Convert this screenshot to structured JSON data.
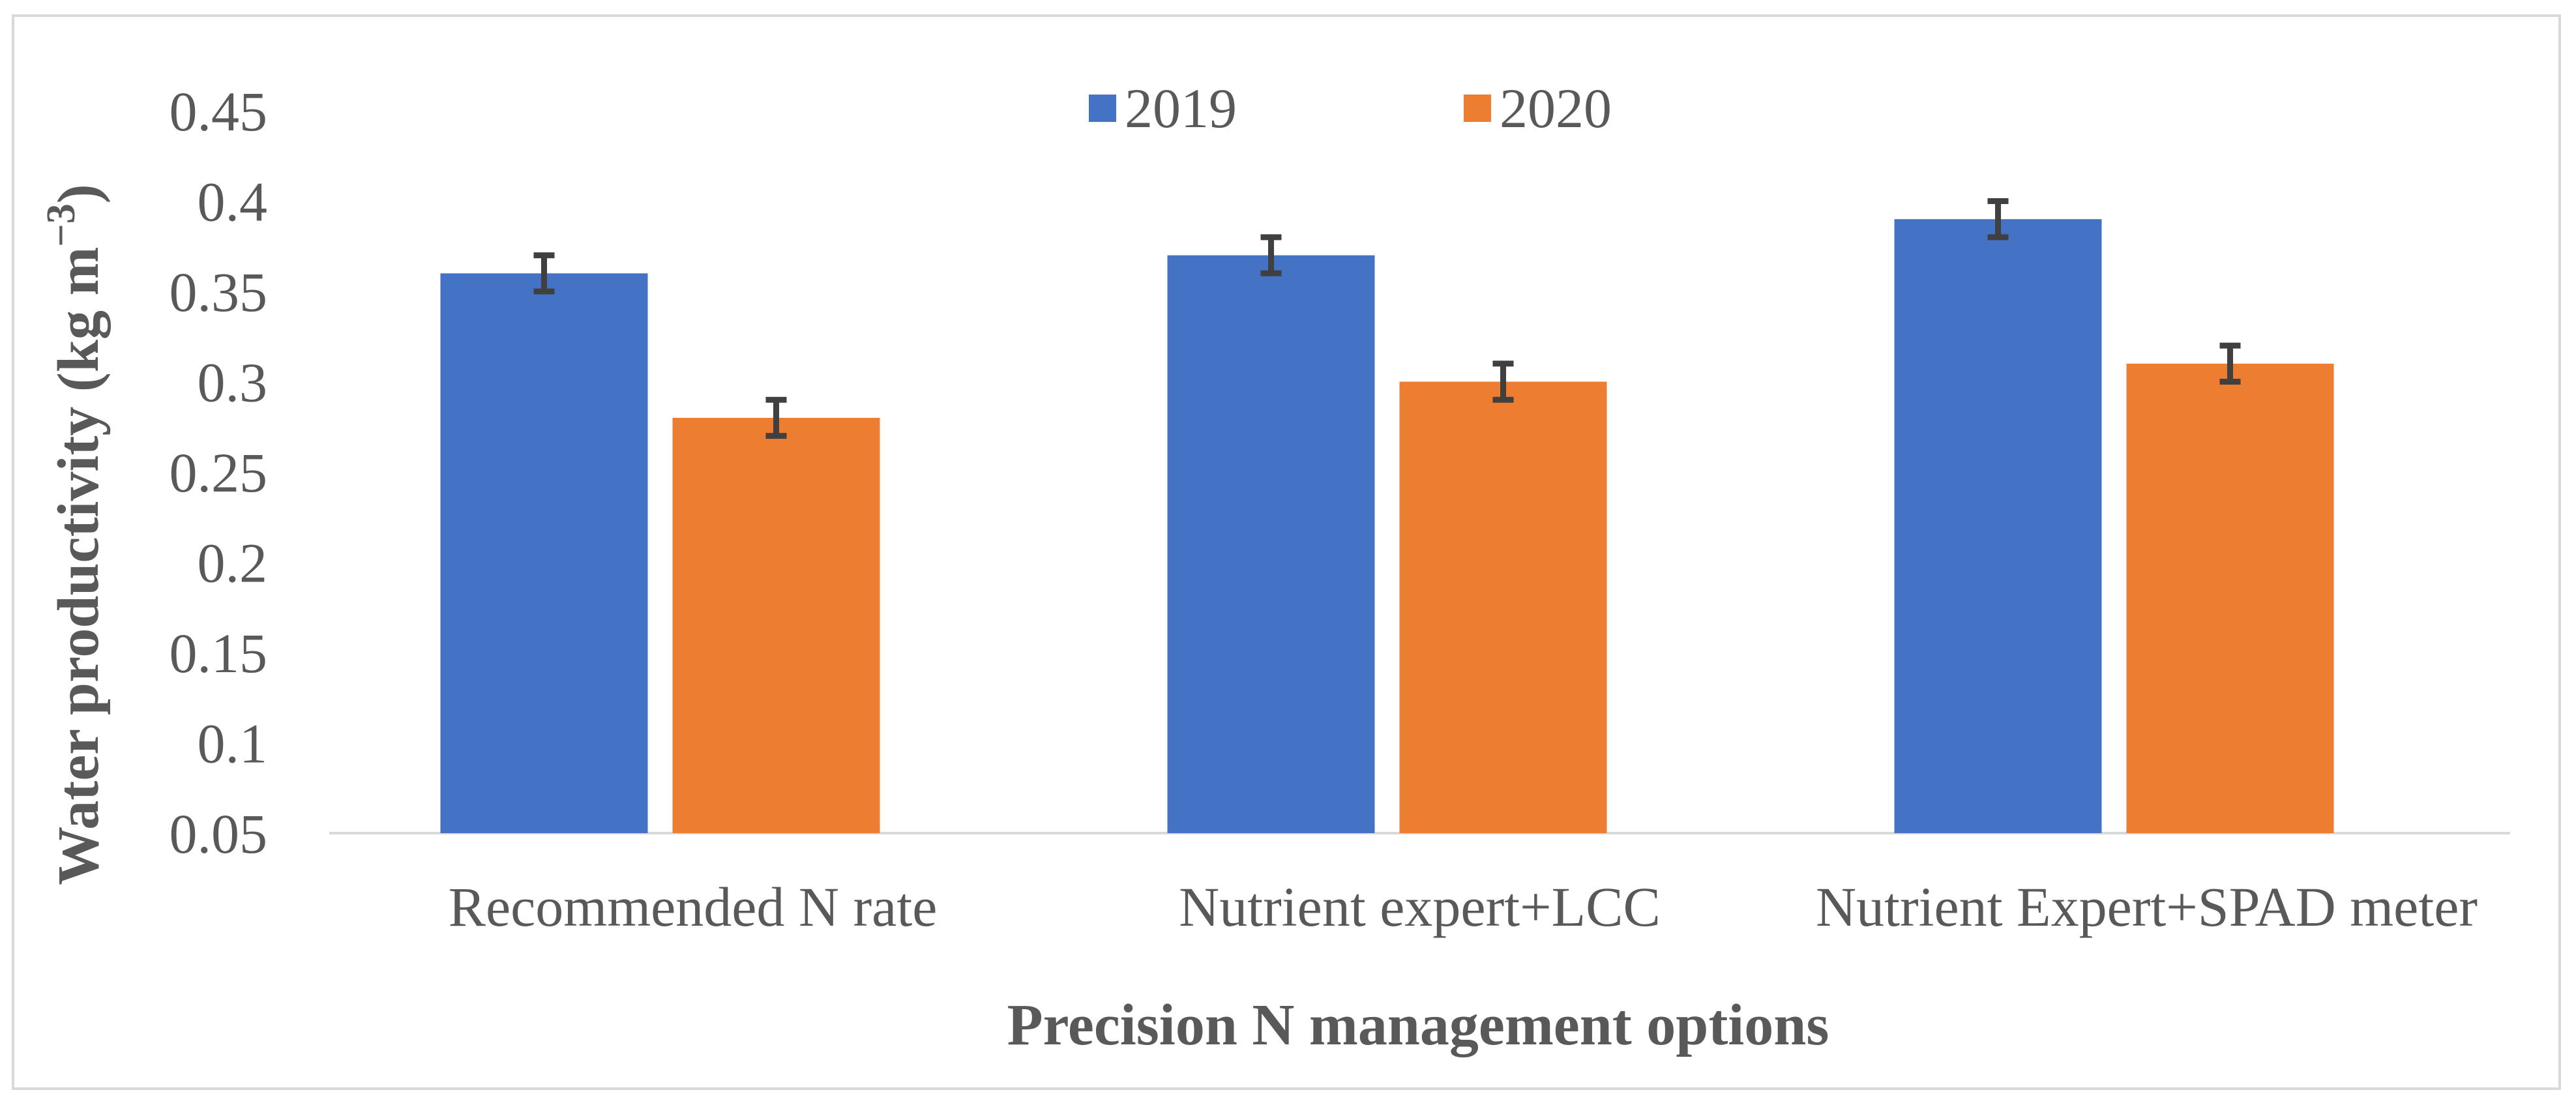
{
  "chart_data": {
    "type": "bar",
    "categories": [
      "Recommended N rate",
      "Nutrient expert+LCC",
      "Nutrient Expert+SPAD meter"
    ],
    "series": [
      {
        "name": "2019",
        "color": "#4472C4",
        "values": [
          0.36,
          0.37,
          0.39
        ],
        "errors": [
          0.01,
          0.01,
          0.01
        ]
      },
      {
        "name": "2020",
        "color": "#ED7D31",
        "values": [
          0.28,
          0.3,
          0.31
        ],
        "errors": [
          0.01,
          0.01,
          0.01
        ]
      }
    ],
    "yticks": [
      "0.05",
      "0.1",
      "0.15",
      "0.2",
      "0.25",
      "0.3",
      "0.35",
      "0.4",
      "0.45"
    ],
    "ylim": [
      0.05,
      0.45
    ],
    "ylabel_main": "Water productivity  (kg m",
    "ylabel_sup": "−3",
    "ylabel_close": ")",
    "xlabel": "Precision N management  options",
    "legend_position": "top-center",
    "grid": false
  }
}
